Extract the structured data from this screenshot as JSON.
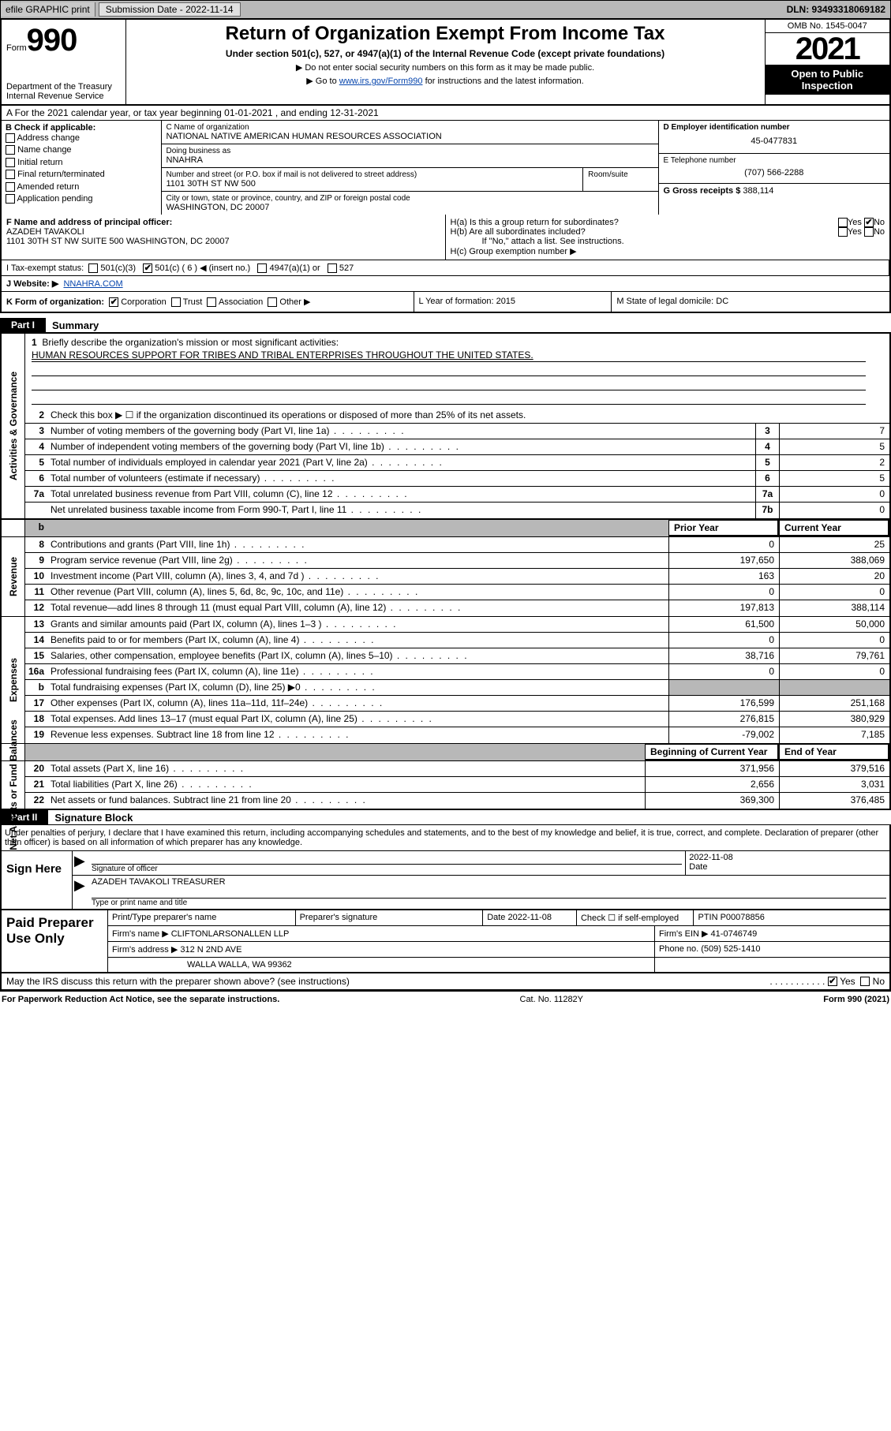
{
  "topbar": {
    "efile": "efile GRAPHIC print",
    "submission_label": "Submission Date - 2022-11-14",
    "dln": "DLN: 93493318069182"
  },
  "header": {
    "form_word": "Form",
    "form_no": "990",
    "dept": "Department of the Treasury Internal Revenue Service",
    "title": "Return of Organization Exempt From Income Tax",
    "subtitle": "Under section 501(c), 527, or 4947(a)(1) of the Internal Revenue Code (except private foundations)",
    "note1": "▶ Do not enter social security numbers on this form as it may be made public.",
    "note2_pre": "▶ Go to ",
    "note2_link": "www.irs.gov/Form990",
    "note2_post": " for instructions and the latest information.",
    "omb": "OMB No. 1545-0047",
    "year": "2021",
    "open": "Open to Public Inspection"
  },
  "rowA": "A For the 2021 calendar year, or tax year beginning 01-01-2021   , and ending 12-31-2021",
  "colB": {
    "title": "B Check if applicable:",
    "opts": [
      "Address change",
      "Name change",
      "Initial return",
      "Final return/terminated",
      "Amended return",
      "Application pending"
    ]
  },
  "colC": {
    "name_lbl": "C Name of organization",
    "name": "NATIONAL NATIVE AMERICAN HUMAN RESOURCES ASSOCIATION",
    "dba_lbl": "Doing business as",
    "dba": "NNAHRA",
    "addr_lbl": "Number and street (or P.O. box if mail is not delivered to street address)",
    "addr": "1101 30TH ST NW 500",
    "room_lbl": "Room/suite",
    "city_lbl": "City or town, state or province, country, and ZIP or foreign postal code",
    "city": "WASHINGTON, DC  20007"
  },
  "colD": {
    "ein_lbl": "D Employer identification number",
    "ein": "45-0477831",
    "tel_lbl": "E Telephone number",
    "tel": "(707) 566-2288",
    "gross_lbl": "G Gross receipts $",
    "gross": "388,114"
  },
  "F": {
    "lbl": "F Name and address of principal officer:",
    "name": "AZADEH TAVAKOLI",
    "addr": "1101 30TH ST NW SUITE 500 WASHINGTON, DC  20007"
  },
  "H": {
    "a": "H(a)  Is this a group return for subordinates?",
    "b": "H(b)  Are all subordinates included?",
    "bnote": "If \"No,\" attach a list. See instructions.",
    "c": "H(c)  Group exemption number ▶"
  },
  "I": {
    "lbl": "I   Tax-exempt status:",
    "c3": "501(c)(3)",
    "c": "501(c) ( 6 ) ◀ (insert no.)",
    "a1": "4947(a)(1) or",
    "s527": "527"
  },
  "J": {
    "lbl": "J   Website: ▶",
    "val": "NNAHRA.COM"
  },
  "K": {
    "lbl": "K Form of organization:",
    "opts": [
      "Corporation",
      "Trust",
      "Association",
      "Other ▶"
    ],
    "L": "L Year of formation: 2015",
    "M": "M State of legal domicile: DC"
  },
  "part1": {
    "tab": "Part I",
    "title": "Summary",
    "l1_lbl": "Briefly describe the organization's mission or most significant activities:",
    "l1_val": "HUMAN RESOURCES SUPPORT FOR TRIBES AND TRIBAL ENTERPRISES THROUGHOUT THE UNITED STATES.",
    "l2": "Check this box ▶ ☐ if the organization discontinued its operations or disposed of more than 25% of its net assets.",
    "gov_lines": [
      {
        "n": "3",
        "d": "Number of voting members of the governing body (Part VI, line 1a)",
        "box": "3",
        "v": "7"
      },
      {
        "n": "4",
        "d": "Number of independent voting members of the governing body (Part VI, line 1b)",
        "box": "4",
        "v": "5"
      },
      {
        "n": "5",
        "d": "Total number of individuals employed in calendar year 2021 (Part V, line 2a)",
        "box": "5",
        "v": "2"
      },
      {
        "n": "6",
        "d": "Total number of volunteers (estimate if necessary)",
        "box": "6",
        "v": "5"
      },
      {
        "n": "7a",
        "d": "Total unrelated business revenue from Part VIII, column (C), line 12",
        "box": "7a",
        "v": "0"
      },
      {
        "n": "",
        "d": "Net unrelated business taxable income from Form 990-T, Part I, line 11",
        "box": "7b",
        "v": "0"
      }
    ],
    "colhdr_py": "Prior Year",
    "colhdr_cy": "Current Year",
    "rev_lines": [
      {
        "n": "8",
        "d": "Contributions and grants (Part VIII, line 1h)",
        "py": "0",
        "cy": "25"
      },
      {
        "n": "9",
        "d": "Program service revenue (Part VIII, line 2g)",
        "py": "197,650",
        "cy": "388,069"
      },
      {
        "n": "10",
        "d": "Investment income (Part VIII, column (A), lines 3, 4, and 7d )",
        "py": "163",
        "cy": "20"
      },
      {
        "n": "11",
        "d": "Other revenue (Part VIII, column (A), lines 5, 6d, 8c, 9c, 10c, and 11e)",
        "py": "0",
        "cy": "0"
      },
      {
        "n": "12",
        "d": "Total revenue—add lines 8 through 11 (must equal Part VIII, column (A), line 12)",
        "py": "197,813",
        "cy": "388,114"
      }
    ],
    "exp_lines": [
      {
        "n": "13",
        "d": "Grants and similar amounts paid (Part IX, column (A), lines 1–3 )",
        "py": "61,500",
        "cy": "50,000"
      },
      {
        "n": "14",
        "d": "Benefits paid to or for members (Part IX, column (A), line 4)",
        "py": "0",
        "cy": "0"
      },
      {
        "n": "15",
        "d": "Salaries, other compensation, employee benefits (Part IX, column (A), lines 5–10)",
        "py": "38,716",
        "cy": "79,761"
      },
      {
        "n": "16a",
        "d": "Professional fundraising fees (Part IX, column (A), line 11e)",
        "py": "0",
        "cy": "0"
      },
      {
        "n": "b",
        "d": "Total fundraising expenses (Part IX, column (D), line 25) ▶0",
        "py": "",
        "cy": "",
        "grey": true
      },
      {
        "n": "17",
        "d": "Other expenses (Part IX, column (A), lines 11a–11d, 11f–24e)",
        "py": "176,599",
        "cy": "251,168"
      },
      {
        "n": "18",
        "d": "Total expenses. Add lines 13–17 (must equal Part IX, column (A), line 25)",
        "py": "276,815",
        "cy": "380,929"
      },
      {
        "n": "19",
        "d": "Revenue less expenses. Subtract line 18 from line 12",
        "py": "-79,002",
        "cy": "7,185"
      }
    ],
    "colhdr_boy": "Beginning of Current Year",
    "colhdr_eoy": "End of Year",
    "na_lines": [
      {
        "n": "20",
        "d": "Total assets (Part X, line 16)",
        "py": "371,956",
        "cy": "379,516"
      },
      {
        "n": "21",
        "d": "Total liabilities (Part X, line 26)",
        "py": "2,656",
        "cy": "3,031"
      },
      {
        "n": "22",
        "d": "Net assets or fund balances. Subtract line 21 from line 20",
        "py": "369,300",
        "cy": "376,485"
      }
    ],
    "side_gov": "Activities & Governance",
    "side_rev": "Revenue",
    "side_exp": "Expenses",
    "side_na": "Net Assets or Fund Balances"
  },
  "part2": {
    "tab": "Part II",
    "title": "Signature Block",
    "decl": "Under penalties of perjury, I declare that I have examined this return, including accompanying schedules and statements, and to the best of my knowledge and belief, it is true, correct, and complete. Declaration of preparer (other than officer) is based on all information of which preparer has any knowledge.",
    "sign_here": "Sign Here",
    "sig_officer_lbl": "Signature of officer",
    "sig_date": "2022-11-08",
    "date_lbl": "Date",
    "printed": "AZADEH TAVAKOLI TREASURER",
    "printed_lbl": "Type or print name and title"
  },
  "prep": {
    "lab": "Paid Preparer Use Only",
    "r1": {
      "c1": "Print/Type preparer's name",
      "c2": "Preparer's signature",
      "c3": "Date 2022-11-08",
      "c4": "Check ☐ if self-employed",
      "c5": "PTIN P00078856"
    },
    "r2": {
      "c1": "Firm's name   ▶ CLIFTONLARSONALLEN LLP",
      "c2": "Firm's EIN ▶ 41-0746749"
    },
    "r3": {
      "c1": "Firm's address ▶ 312 N 2ND AVE",
      "c2": "Phone no. (509) 525-1410"
    },
    "r3b": "WALLA WALLA, WA  99362"
  },
  "may": {
    "q": "May the IRS discuss this return with the preparer shown above? (see instructions)",
    "yes": "Yes",
    "no": "No"
  },
  "footer": {
    "l": "For Paperwork Reduction Act Notice, see the separate instructions.",
    "m": "Cat. No. 11282Y",
    "r": "Form 990 (2021)"
  }
}
